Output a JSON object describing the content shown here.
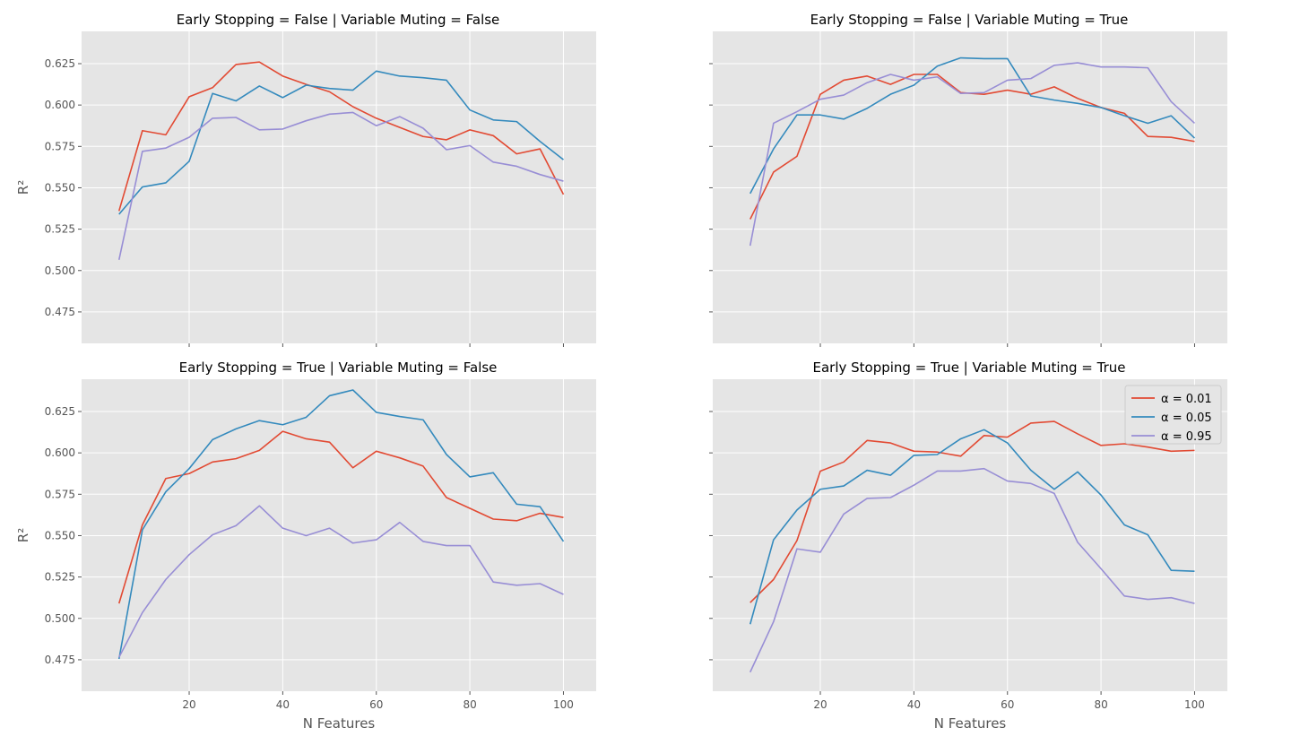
{
  "chart_data": {
    "type": "line",
    "shared_x": [
      5,
      10,
      15,
      20,
      25,
      30,
      35,
      40,
      45,
      50,
      55,
      60,
      65,
      70,
      75,
      80,
      85,
      90,
      95,
      100
    ],
    "xlabel": "N Features",
    "ylabel": "R²",
    "xlim": [
      -3,
      107
    ],
    "ylim": [
      0.456,
      0.6445
    ],
    "x_ticks": [
      20,
      40,
      60,
      80,
      100
    ],
    "y_ticks": [
      0.475,
      0.5,
      0.525,
      0.55,
      0.575,
      0.6,
      0.625
    ],
    "y_tick_labels": [
      "0.475",
      "0.500",
      "0.525",
      "0.550",
      "0.575",
      "0.600",
      "0.625"
    ],
    "x_tick_labels": [
      "20",
      "40",
      "60",
      "80",
      "100"
    ],
    "grid": true,
    "legend": {
      "placement": "upper-right of bottom-right panel",
      "entries": [
        "α = 0.01",
        "α = 0.05",
        "α = 0.95"
      ]
    },
    "series_colors": [
      "#E24A33",
      "#348ABD",
      "#988ED5"
    ],
    "panels": [
      {
        "title": "Early Stopping = False | Variable Muting = False",
        "series": [
          {
            "name": "α = 0.01",
            "values": [
              0.536,
              0.5845,
              0.582,
              0.605,
              0.6105,
              0.6245,
              0.626,
              0.6175,
              0.6125,
              0.608,
              0.599,
              0.592,
              0.5865,
              0.581,
              0.579,
              0.585,
              0.5815,
              0.5705,
              0.5735,
              0.546
            ]
          },
          {
            "name": "α = 0.05",
            "values": [
              0.534,
              0.5505,
              0.553,
              0.566,
              0.607,
              0.6025,
              0.6115,
              0.6045,
              0.612,
              0.61,
              0.609,
              0.6205,
              0.6175,
              0.6165,
              0.615,
              0.597,
              0.591,
              0.59,
              0.578,
              0.567
            ]
          },
          {
            "name": "α = 0.95",
            "values": [
              0.5065,
              0.572,
              0.574,
              0.5805,
              0.592,
              0.5925,
              0.585,
              0.5855,
              0.5905,
              0.5945,
              0.5955,
              0.5875,
              0.593,
              0.586,
              0.573,
              0.5755,
              0.5655,
              0.563,
              0.558,
              0.554
            ]
          }
        ]
      },
      {
        "title": "Early Stopping = False | Variable Muting = True",
        "series": [
          {
            "name": "α = 0.01",
            "values": [
              0.531,
              0.5595,
              0.569,
              0.6065,
              0.615,
              0.6175,
              0.6125,
              0.6185,
              0.6185,
              0.6075,
              0.6065,
              0.609,
              0.6065,
              0.611,
              0.604,
              0.5985,
              0.595,
              0.581,
              0.5805,
              0.578
            ]
          },
          {
            "name": "α = 0.05",
            "values": [
              0.5465,
              0.5735,
              0.594,
              0.594,
              0.5915,
              0.598,
              0.6065,
              0.612,
              0.6235,
              0.6285,
              0.628,
              0.628,
              0.6055,
              0.603,
              0.601,
              0.5985,
              0.5935,
              0.589,
              0.5935,
              0.58
            ]
          },
          {
            "name": "α = 0.95",
            "values": [
              0.515,
              0.589,
              0.596,
              0.6035,
              0.606,
              0.6135,
              0.6185,
              0.615,
              0.617,
              0.607,
              0.6075,
              0.615,
              0.616,
              0.624,
              0.6255,
              0.623,
              0.623,
              0.6225,
              0.602,
              0.589
            ]
          }
        ]
      },
      {
        "title": "Early Stopping = True | Variable Muting = False",
        "series": [
          {
            "name": "α = 0.01",
            "values": [
              0.509,
              0.5565,
              0.5845,
              0.5875,
              0.5945,
              0.5965,
              0.6015,
              0.613,
              0.6085,
              0.6065,
              0.591,
              0.601,
              0.597,
              0.592,
              0.573,
              0.5665,
              0.56,
              0.559,
              0.5635,
              0.561
            ]
          },
          {
            "name": "α = 0.05",
            "values": [
              0.4755,
              0.5535,
              0.5765,
              0.5905,
              0.608,
              0.6145,
              0.6195,
              0.617,
              0.6215,
              0.6345,
              0.638,
              0.6245,
              0.622,
              0.62,
              0.599,
              0.5855,
              0.588,
              0.569,
              0.5675,
              0.5465
            ]
          },
          {
            "name": "α = 0.95",
            "values": [
              0.4765,
              0.5035,
              0.5235,
              0.5385,
              0.5505,
              0.556,
              0.568,
              0.5545,
              0.55,
              0.5545,
              0.5455,
              0.5475,
              0.558,
              0.5465,
              0.544,
              0.544,
              0.522,
              0.52,
              0.521,
              0.5145
            ]
          }
        ]
      },
      {
        "title": "Early Stopping = True | Variable Muting = True",
        "series": [
          {
            "name": "α = 0.01",
            "values": [
              0.5095,
              0.5235,
              0.547,
              0.589,
              0.5945,
              0.6075,
              0.606,
              0.601,
              0.6005,
              0.598,
              0.6105,
              0.6095,
              0.618,
              0.619,
              0.6115,
              0.6045,
              0.6055,
              0.6035,
              0.601,
              0.6015
            ]
          },
          {
            "name": "α = 0.05",
            "values": [
              0.4965,
              0.5475,
              0.5655,
              0.578,
              0.58,
              0.5895,
              0.5865,
              0.5985,
              0.599,
              0.6085,
              0.614,
              0.606,
              0.5895,
              0.578,
              0.5885,
              0.5745,
              0.5565,
              0.5505,
              0.529,
              0.5285
            ]
          },
          {
            "name": "α = 0.95",
            "values": [
              0.4675,
              0.498,
              0.542,
              0.54,
              0.563,
              0.5725,
              0.573,
              0.5805,
              0.589,
              0.589,
              0.5905,
              0.583,
              0.5815,
              0.5755,
              0.546,
              0.53,
              0.5135,
              0.5115,
              0.5125,
              0.509
            ]
          }
        ]
      }
    ]
  }
}
